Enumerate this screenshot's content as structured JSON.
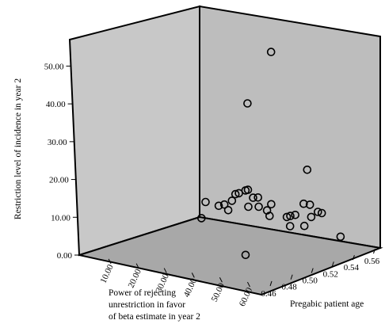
{
  "chart_data": {
    "type": "scatter",
    "subtype": "3d-scatter",
    "title": "",
    "zlabel": "Restriction level of incidence in year 2",
    "xlabel_lines": [
      "Power of rejecting",
      "unrestriction in favor",
      "of beta estimate in year 2"
    ],
    "ylabel": "Pregabic patient age",
    "x_ticks": [
      "0.46",
      "0.48",
      "0.50",
      "0.52",
      "0.54",
      "0.56"
    ],
    "y_ticks": [
      "60.00",
      "50.00",
      "40.00",
      "30.00",
      "20.00",
      "10.00"
    ],
    "z_ticks": [
      "0.00",
      "10.00",
      "20.00",
      "30.00",
      "40.00",
      "50.00"
    ],
    "xlim": [
      0.45,
      0.565
    ],
    "ylim": [
      0,
      65
    ],
    "zlim": [
      0,
      57
    ],
    "grid": false,
    "marker": "open-circle",
    "colors": {
      "wall": "#c8c8c8",
      "floor": "#a8a8a8",
      "edge": "#000000",
      "marker": "#000000"
    },
    "points": [
      {
        "x": 0.532,
        "y": 38,
        "z": 52.3
      },
      {
        "x": 0.536,
        "y": 28,
        "z": 36.8
      },
      {
        "x": 0.54,
        "y": 48,
        "z": 21.0
      },
      {
        "x": 0.538,
        "y": 54,
        "z": 10.2
      },
      {
        "x": 0.545,
        "y": 50,
        "z": 9.4
      },
      {
        "x": 0.55,
        "y": 43,
        "z": 10.3
      },
      {
        "x": 0.548,
        "y": 46,
        "z": 10.6
      },
      {
        "x": 0.475,
        "y": 50,
        "z": 3.9
      },
      {
        "x": 0.558,
        "y": 20,
        "z": 10.5
      },
      {
        "x": 0.561,
        "y": 18,
        "z": 9.8
      },
      {
        "x": 0.56,
        "y": 16,
        "z": 8.9
      },
      {
        "x": 0.557,
        "y": 24,
        "z": 9.0
      },
      {
        "x": 0.562,
        "y": 14,
        "z": 8.2
      },
      {
        "x": 0.563,
        "y": 20,
        "z": 7.9
      },
      {
        "x": 0.559,
        "y": 28,
        "z": 7.5
      },
      {
        "x": 0.555,
        "y": 25,
        "z": 6.8
      },
      {
        "x": 0.553,
        "y": 22,
        "z": 6.6
      },
      {
        "x": 0.55,
        "y": 40,
        "z": 6.9
      },
      {
        "x": 0.552,
        "y": 45,
        "z": 6.8
      },
      {
        "x": 0.556,
        "y": 36,
        "z": 5.6
      },
      {
        "x": 0.552,
        "y": 30,
        "z": 5.2
      },
      {
        "x": 0.558,
        "y": 34,
        "z": 4.9
      },
      {
        "x": 0.563,
        "y": 25,
        "z": 5.1
      },
      {
        "x": 0.564,
        "y": 12,
        "z": 6.0
      },
      {
        "x": 0.562,
        "y": 10,
        "z": 4.9
      },
      {
        "x": 0.562,
        "y": 8,
        "z": 4.3
      },
      {
        "x": 0.555,
        "y": 14,
        "z": 4.5
      },
      {
        "x": 0.56,
        "y": 4,
        "z": 5.0
      },
      {
        "x": 0.548,
        "y": 44,
        "z": 4.6
      },
      {
        "x": 0.54,
        "y": 60,
        "z": 4.4
      },
      {
        "x": 0.545,
        "y": 40,
        "z": 4.3
      },
      {
        "x": 0.556,
        "y": 4,
        "z": 1.0
      }
    ]
  }
}
